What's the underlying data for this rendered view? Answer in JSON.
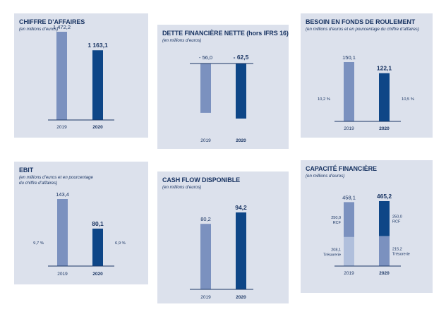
{
  "colors": {
    "bar_2019": "#7b91bf",
    "bar_2020": "#0e4687",
    "bar_2019_light": "#b0bfdc",
    "panel_bg": "#dce1ec",
    "text": "#1a3563"
  },
  "panels": [
    {
      "title": "CHIFFRE D’AFFAIRES",
      "subtitle": [
        "(en millions d’euros)"
      ]
    },
    {
      "title": "DETTE FINANCIÈRE NETTE (hors IFRS 16)",
      "subtitle": [
        "(en millions d’euros)"
      ]
    },
    {
      "title": "BESOIN EN FONDS DE ROULEMENT",
      "subtitle": [
        "(en millions d’euros et en pourcentage du chiffre d’affaires)"
      ]
    },
    {
      "title": "EBIT",
      "subtitle": [
        "(en millions d’euros et en pourcentage",
        "du chiffre d’affaires)"
      ]
    },
    {
      "title": "CASH FLOW DISPONIBLE",
      "subtitle": [
        "(en millions d’euros)"
      ]
    },
    {
      "title": "CAPACITÉ FINANCIÈRE",
      "subtitle": [
        "(en millions d’euros)"
      ]
    }
  ],
  "chart_data": [
    {
      "type": "bar",
      "title": "CHIFFRE D’AFFAIRES",
      "categories": [
        "2019",
        "2020"
      ],
      "values": [
        1472.2,
        1163.1
      ],
      "value_labels": [
        "1 472,2",
        "1 163,1"
      ],
      "ylim": [
        0,
        1472.2
      ]
    },
    {
      "type": "bar",
      "title": "DETTE FINANCIÈRE NETTE (hors IFRS 16)",
      "categories": [
        "2019",
        "2020"
      ],
      "values": [
        -56.0,
        -62.5
      ],
      "value_labels": [
        "- 56,0",
        "- 62,5"
      ],
      "ylim": [
        -62.5,
        0
      ]
    },
    {
      "type": "bar",
      "title": "BESOIN EN FONDS DE ROULEMENT",
      "categories": [
        "2019",
        "2020"
      ],
      "values": [
        150.1,
        122.1
      ],
      "value_labels": [
        "150,1",
        "122,1"
      ],
      "percent_labels": [
        "10,2 %",
        "10,5 %"
      ],
      "ylim": [
        0,
        150.1
      ]
    },
    {
      "type": "bar",
      "title": "EBIT",
      "categories": [
        "2019",
        "2020"
      ],
      "values": [
        143.4,
        80.1
      ],
      "value_labels": [
        "143,4",
        "80,1"
      ],
      "percent_labels": [
        "9,7 %",
        "6,9 %"
      ],
      "ylim": [
        0,
        143.4
      ]
    },
    {
      "type": "bar",
      "title": "CASH FLOW DISPONIBLE",
      "categories": [
        "2019",
        "2020"
      ],
      "values": [
        80.2,
        94.2
      ],
      "value_labels": [
        "80,2",
        "94,2"
      ],
      "ylim": [
        0,
        94.2
      ]
    },
    {
      "type": "bar",
      "stacked": true,
      "title": "CAPACITÉ FINANCIÈRE",
      "categories": [
        "2019",
        "2020"
      ],
      "values": [
        458.1,
        465.2
      ],
      "value_labels": [
        "458,1",
        "465,2"
      ],
      "ylim": [
        0,
        465.2
      ],
      "series": [
        {
          "name": "Trésorerie",
          "values": [
            208.1,
            215.2
          ],
          "value_labels": [
            "208,1",
            "215,2"
          ]
        },
        {
          "name": "RCF",
          "values": [
            250.0,
            250.0
          ],
          "value_labels": [
            "250,0",
            "250,0"
          ]
        }
      ]
    }
  ]
}
